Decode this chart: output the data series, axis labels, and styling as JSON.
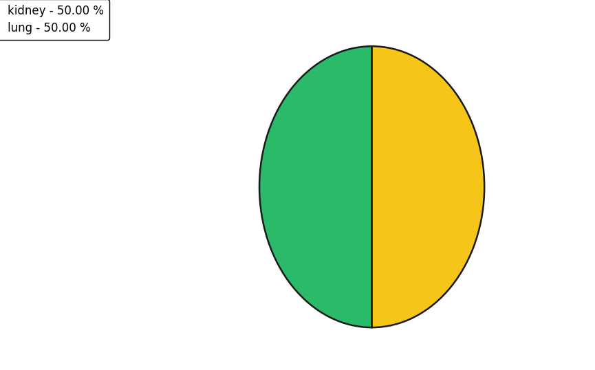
{
  "labels": [
    "kidney - 50.00 %",
    "lung - 50.00 %"
  ],
  "sizes": [
    50,
    50
  ],
  "colors": [
    "#2aba6a",
    "#f5c518"
  ],
  "edge_color": "#1a1a1a",
  "edge_width": 1.8,
  "startangle": 90,
  "background_color": "#ffffff",
  "legend_fontsize": 12,
  "figsize": [
    8.65,
    5.38
  ],
  "dpi": 100
}
